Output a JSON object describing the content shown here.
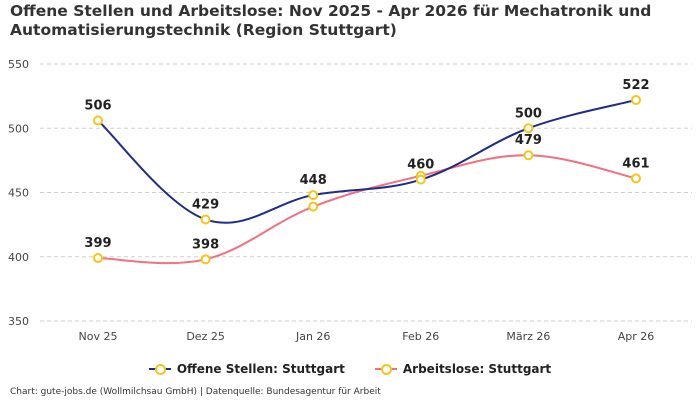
{
  "chart_data": {
    "type": "line",
    "title": "Offene Stellen und Arbeitslose: Nov 2025 - Apr 2026 für Mechatronik und Automatisierungstechnik (Region Stuttgart)",
    "categories": [
      "Nov 25",
      "Dez 25",
      "Jan 26",
      "Feb 26",
      "März 26",
      "Apr 26"
    ],
    "series": [
      {
        "name": "Offene Stellen: Stuttgart",
        "values": [
          506,
          429,
          448,
          460,
          500,
          522
        ],
        "color": "#1f2d8a"
      },
      {
        "name": "Arbeitslose: Stuttgart",
        "values": [
          399,
          398,
          439,
          463,
          479,
          461
        ],
        "color": "#f0717f"
      }
    ],
    "data_labels": [
      {
        "series": 0,
        "index": 0,
        "text": "506"
      },
      {
        "series": 0,
        "index": 1,
        "text": "429"
      },
      {
        "series": 0,
        "index": 2,
        "text": "448"
      },
      {
        "series": 0,
        "index": 3,
        "text": "460"
      },
      {
        "series": 0,
        "index": 4,
        "text": "500"
      },
      {
        "series": 0,
        "index": 5,
        "text": "522"
      },
      {
        "series": 1,
        "index": 0,
        "text": "399"
      },
      {
        "series": 1,
        "index": 1,
        "text": "398"
      },
      {
        "series": 1,
        "index": 4,
        "text": "479"
      },
      {
        "series": 1,
        "index": 5,
        "text": "461"
      }
    ],
    "yticks": [
      350,
      400,
      450,
      500,
      550
    ],
    "ylim": [
      350,
      550
    ],
    "grid": true,
    "legend_position": "bottom",
    "marker_color": "#f5c518"
  },
  "credit": "Chart: gute-jobs.de (Wollmilchsau GmbH) | Datenquelle: Bundesagentur für Arbeit"
}
